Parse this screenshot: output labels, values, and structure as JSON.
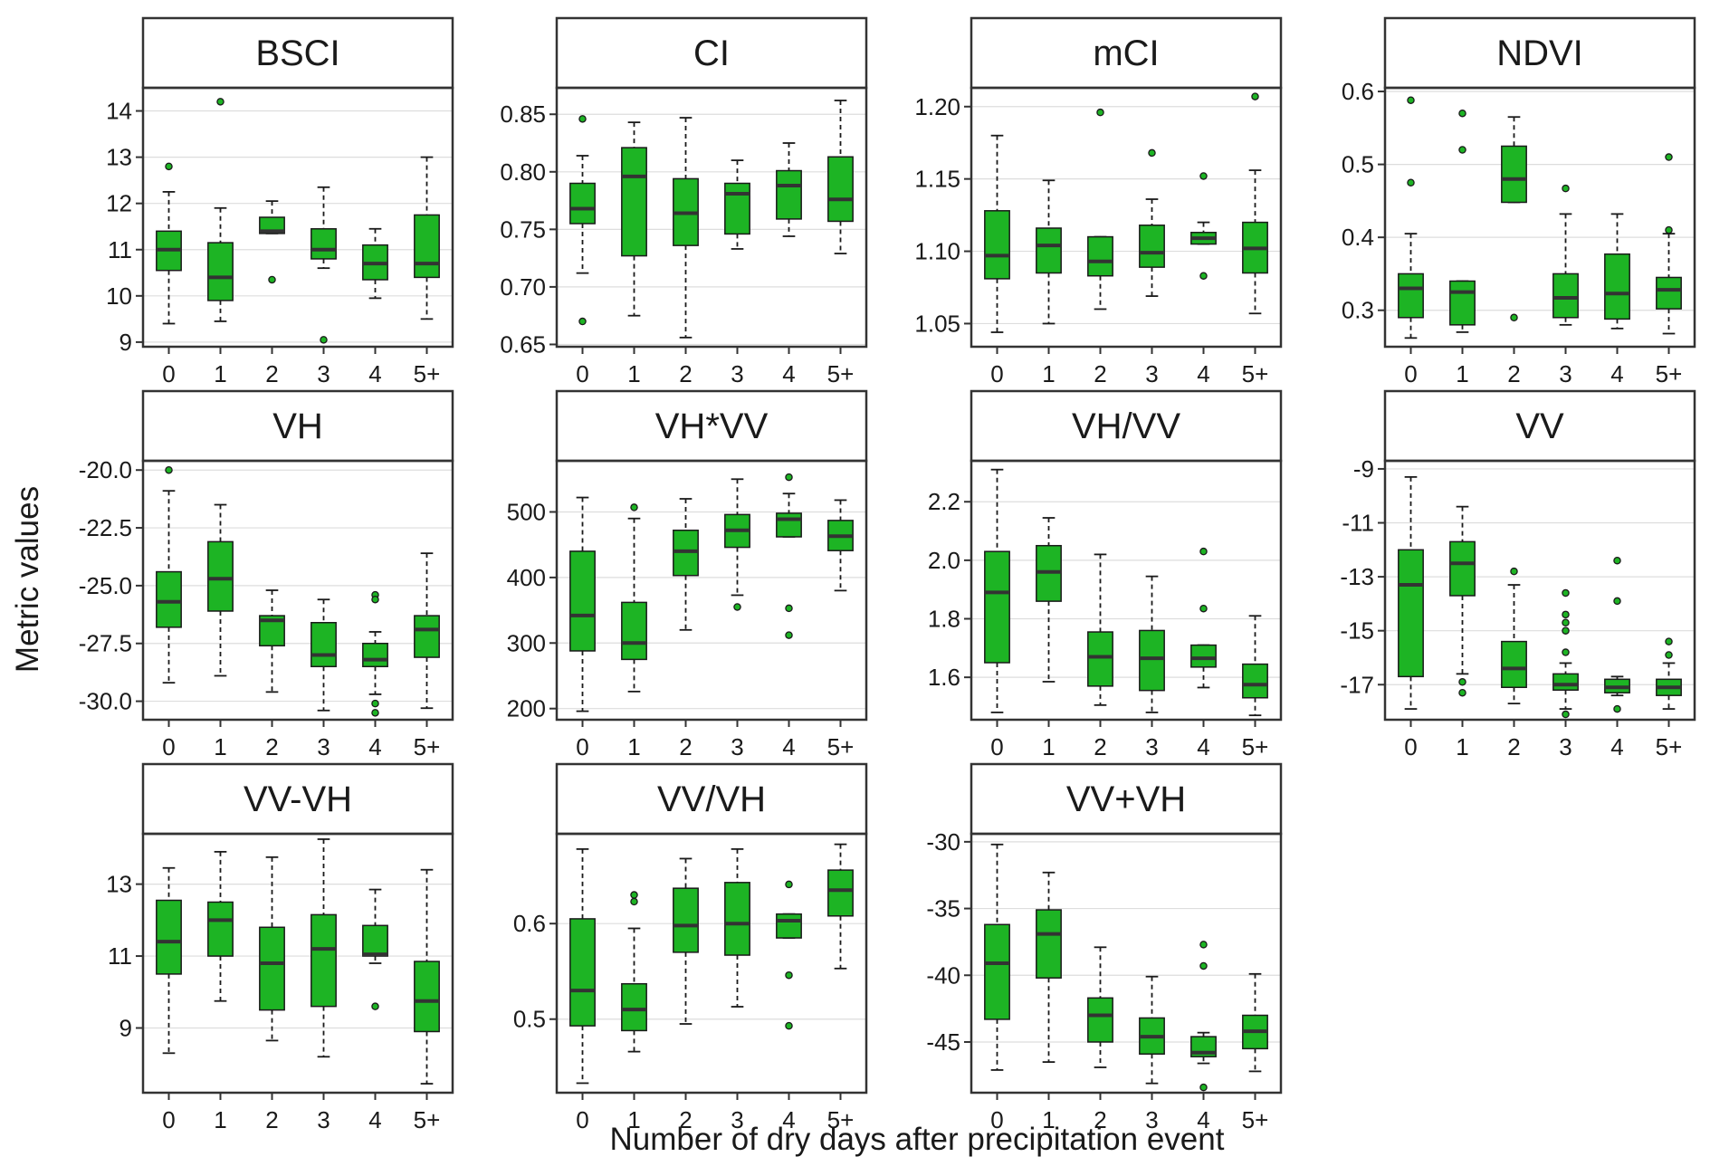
{
  "figure": {
    "ylabel": "Metric values",
    "xlabel": "Number of dry days after precipitation event",
    "colors": {
      "box_fill": "#1DB424",
      "box_stroke": "#1a1a1a",
      "median": "#333333",
      "outlier_fill": "#1DB424",
      "grid": "#dddddd",
      "frame": "#333333",
      "strip_bg": "#ffffff"
    }
  },
  "chart_data": [
    {
      "type": "box",
      "title": "BSCI",
      "categories": [
        "0",
        "1",
        "2",
        "3",
        "4",
        "5+"
      ],
      "ylim": [
        8.9,
        14.5
      ],
      "yticks": [
        9,
        10,
        11,
        12,
        13,
        14
      ],
      "ytick_labels": [
        "9",
        "10",
        "11",
        "12",
        "13",
        "14"
      ],
      "boxes": [
        {
          "lw": 9.4,
          "q1": 10.55,
          "median": 11.0,
          "q3": 11.4,
          "uw": 12.25,
          "outliers": [
            12.8
          ]
        },
        {
          "lw": 9.45,
          "q1": 9.9,
          "median": 10.4,
          "q3": 11.15,
          "uw": 11.9,
          "outliers": [
            14.2
          ]
        },
        {
          "lw": 11.35,
          "q1": 11.35,
          "median": 11.4,
          "q3": 11.7,
          "uw": 12.05,
          "outliers": [
            10.35
          ]
        },
        {
          "lw": 10.6,
          "q1": 10.8,
          "median": 11.0,
          "q3": 11.45,
          "uw": 12.35,
          "outliers": [
            9.05
          ]
        },
        {
          "lw": 9.95,
          "q1": 10.35,
          "median": 10.7,
          "q3": 11.1,
          "uw": 11.45,
          "outliers": []
        },
        {
          "lw": 9.5,
          "q1": 10.4,
          "median": 10.7,
          "q3": 11.75,
          "uw": 13.0,
          "outliers": []
        }
      ]
    },
    {
      "type": "box",
      "title": "CI",
      "categories": [
        "0",
        "1",
        "2",
        "3",
        "4",
        "5+"
      ],
      "ylim": [
        0.648,
        0.873
      ],
      "yticks": [
        0.65,
        0.7,
        0.75,
        0.8,
        0.85
      ],
      "ytick_labels": [
        "0.65",
        "0.70",
        "0.75",
        "0.80",
        "0.85"
      ],
      "boxes": [
        {
          "lw": 0.712,
          "q1": 0.755,
          "median": 0.768,
          "q3": 0.79,
          "uw": 0.814,
          "outliers": [
            0.846,
            0.67
          ]
        },
        {
          "lw": 0.675,
          "q1": 0.727,
          "median": 0.796,
          "q3": 0.821,
          "uw": 0.843,
          "outliers": []
        },
        {
          "lw": 0.656,
          "q1": 0.736,
          "median": 0.764,
          "q3": 0.794,
          "uw": 0.847,
          "outliers": []
        },
        {
          "lw": 0.733,
          "q1": 0.746,
          "median": 0.781,
          "q3": 0.79,
          "uw": 0.81,
          "outliers": []
        },
        {
          "lw": 0.744,
          "q1": 0.759,
          "median": 0.788,
          "q3": 0.801,
          "uw": 0.825,
          "outliers": []
        },
        {
          "lw": 0.729,
          "q1": 0.757,
          "median": 0.776,
          "q3": 0.813,
          "uw": 0.862,
          "outliers": []
        }
      ]
    },
    {
      "type": "box",
      "title": "mCI",
      "categories": [
        "0",
        "1",
        "2",
        "3",
        "4",
        "5+"
      ],
      "ylim": [
        1.034,
        1.213
      ],
      "yticks": [
        1.05,
        1.1,
        1.15,
        1.2
      ],
      "ytick_labels": [
        "1.05",
        "1.10",
        "1.15",
        "1.20"
      ],
      "boxes": [
        {
          "lw": 1.044,
          "q1": 1.081,
          "median": 1.097,
          "q3": 1.128,
          "uw": 1.18,
          "outliers": []
        },
        {
          "lw": 1.05,
          "q1": 1.085,
          "median": 1.104,
          "q3": 1.116,
          "uw": 1.149,
          "outliers": []
        },
        {
          "lw": 1.06,
          "q1": 1.083,
          "median": 1.093,
          "q3": 1.11,
          "uw": 1.11,
          "outliers": [
            1.196
          ]
        },
        {
          "lw": 1.069,
          "q1": 1.089,
          "median": 1.099,
          "q3": 1.118,
          "uw": 1.136,
          "outliers": [
            1.168
          ]
        },
        {
          "lw": 1.105,
          "q1": 1.105,
          "median": 1.109,
          "q3": 1.113,
          "uw": 1.12,
          "outliers": [
            1.152,
            1.083
          ]
        },
        {
          "lw": 1.057,
          "q1": 1.085,
          "median": 1.102,
          "q3": 1.12,
          "uw": 1.156,
          "outliers": [
            1.207
          ]
        }
      ]
    },
    {
      "type": "box",
      "title": "NDVI",
      "categories": [
        "0",
        "1",
        "2",
        "3",
        "4",
        "5+"
      ],
      "ylim": [
        0.25,
        0.605
      ],
      "yticks": [
        0.3,
        0.4,
        0.5,
        0.6
      ],
      "ytick_labels": [
        "0.3",
        "0.4",
        "0.5",
        "0.6"
      ],
      "boxes": [
        {
          "lw": 0.262,
          "q1": 0.29,
          "median": 0.33,
          "q3": 0.35,
          "uw": 0.405,
          "outliers": [
            0.588,
            0.475
          ]
        },
        {
          "lw": 0.27,
          "q1": 0.28,
          "median": 0.325,
          "q3": 0.34,
          "uw": 0.34,
          "outliers": [
            0.57,
            0.52
          ]
        },
        {
          "lw": 0.448,
          "q1": 0.448,
          "median": 0.48,
          "q3": 0.525,
          "uw": 0.565,
          "outliers": [
            0.29
          ]
        },
        {
          "lw": 0.28,
          "q1": 0.29,
          "median": 0.317,
          "q3": 0.35,
          "uw": 0.432,
          "outliers": [
            0.467
          ]
        },
        {
          "lw": 0.275,
          "q1": 0.288,
          "median": 0.323,
          "q3": 0.377,
          "uw": 0.432,
          "outliers": []
        },
        {
          "lw": 0.268,
          "q1": 0.302,
          "median": 0.328,
          "q3": 0.345,
          "uw": 0.405,
          "outliers": [
            0.51,
            0.41
          ]
        }
      ]
    },
    {
      "type": "box",
      "title": "VH",
      "categories": [
        "0",
        "1",
        "2",
        "3",
        "4",
        "5+"
      ],
      "ylim": [
        -30.8,
        -19.6
      ],
      "yticks": [
        -30.0,
        -27.5,
        -25.0,
        -22.5,
        -20.0
      ],
      "ytick_labels": [
        "-30.0",
        "-27.5",
        "-25.0",
        "-22.5",
        "-20.0"
      ],
      "boxes": [
        {
          "lw": -29.2,
          "q1": -26.8,
          "median": -25.7,
          "q3": -24.4,
          "uw": -20.9,
          "outliers": [
            -20.0
          ]
        },
        {
          "lw": -28.9,
          "q1": -26.1,
          "median": -24.7,
          "q3": -23.1,
          "uw": -21.5,
          "outliers": []
        },
        {
          "lw": -29.6,
          "q1": -27.6,
          "median": -26.5,
          "q3": -26.3,
          "uw": -25.2,
          "outliers": []
        },
        {
          "lw": -30.4,
          "q1": -28.5,
          "median": -28.0,
          "q3": -26.6,
          "uw": -25.6,
          "outliers": []
        },
        {
          "lw": -29.7,
          "q1": -28.5,
          "median": -28.2,
          "q3": -27.5,
          "uw": -27.0,
          "outliers": [
            -25.4,
            -25.6,
            -30.1,
            -30.5
          ]
        },
        {
          "lw": -30.3,
          "q1": -28.1,
          "median": -26.9,
          "q3": -26.3,
          "uw": -23.6,
          "outliers": []
        }
      ]
    },
    {
      "type": "box",
      "title": "VH*VV",
      "categories": [
        "0",
        "1",
        "2",
        "3",
        "4",
        "5+"
      ],
      "ylim": [
        183,
        578
      ],
      "yticks": [
        200,
        300,
        400,
        500
      ],
      "ytick_labels": [
        "200",
        "300",
        "400",
        "500"
      ],
      "boxes": [
        {
          "lw": 196,
          "q1": 288,
          "median": 342,
          "q3": 440,
          "uw": 522,
          "outliers": []
        },
        {
          "lw": 226,
          "q1": 275,
          "median": 300,
          "q3": 362,
          "uw": 490,
          "outliers": [
            507
          ]
        },
        {
          "lw": 320,
          "q1": 403,
          "median": 440,
          "q3": 472,
          "uw": 520,
          "outliers": []
        },
        {
          "lw": 373,
          "q1": 446,
          "median": 472,
          "q3": 496,
          "uw": 550,
          "outliers": [
            355
          ]
        },
        {
          "lw": 462,
          "q1": 462,
          "median": 489,
          "q3": 498,
          "uw": 528,
          "outliers": [
            553,
            353,
            312
          ]
        },
        {
          "lw": 380,
          "q1": 441,
          "median": 463,
          "q3": 487,
          "uw": 518,
          "outliers": []
        }
      ]
    },
    {
      "type": "box",
      "title": "VH/VV",
      "categories": [
        "0",
        "1",
        "2",
        "3",
        "4",
        "5+"
      ],
      "ylim": [
        1.455,
        2.34
      ],
      "yticks": [
        1.6,
        1.8,
        2.0,
        2.2
      ],
      "ytick_labels": [
        "1.6",
        "1.8",
        "2.0",
        "2.2"
      ],
      "boxes": [
        {
          "lw": 1.48,
          "q1": 1.65,
          "median": 1.89,
          "q3": 2.03,
          "uw": 2.31,
          "outliers": []
        },
        {
          "lw": 1.585,
          "q1": 1.86,
          "median": 1.96,
          "q3": 2.05,
          "uw": 2.145,
          "outliers": []
        },
        {
          "lw": 1.505,
          "q1": 1.57,
          "median": 1.67,
          "q3": 1.755,
          "uw": 2.02,
          "outliers": []
        },
        {
          "lw": 1.48,
          "q1": 1.555,
          "median": 1.665,
          "q3": 1.76,
          "uw": 1.945,
          "outliers": []
        },
        {
          "lw": 1.565,
          "q1": 1.635,
          "median": 1.665,
          "q3": 1.71,
          "uw": 1.71,
          "outliers": [
            2.03,
            1.835
          ]
        },
        {
          "lw": 1.47,
          "q1": 1.53,
          "median": 1.575,
          "q3": 1.645,
          "uw": 1.81,
          "outliers": []
        }
      ]
    },
    {
      "type": "box",
      "title": "VV",
      "categories": [
        "0",
        "1",
        "2",
        "3",
        "4",
        "5+"
      ],
      "ylim": [
        -18.3,
        -8.7
      ],
      "yticks": [
        -17,
        -15,
        -13,
        -11,
        -9
      ],
      "ytick_labels": [
        "-17",
        "-15",
        "-13",
        "-11",
        "-9"
      ],
      "boxes": [
        {
          "lw": -17.9,
          "q1": -16.7,
          "median": -13.3,
          "q3": -12.0,
          "uw": -9.3,
          "outliers": []
        },
        {
          "lw": -16.6,
          "q1": -13.7,
          "median": -12.5,
          "q3": -11.7,
          "uw": -10.4,
          "outliers": [
            -16.9,
            -17.3
          ]
        },
        {
          "lw": -17.7,
          "q1": -17.1,
          "median": -16.4,
          "q3": -15.4,
          "uw": -13.3,
          "outliers": [
            -12.8
          ]
        },
        {
          "lw": -17.9,
          "q1": -17.2,
          "median": -17.0,
          "q3": -16.6,
          "uw": -16.2,
          "outliers": [
            -13.6,
            -14.4,
            -14.7,
            -15.0,
            -15.8,
            -18.1
          ]
        },
        {
          "lw": -17.4,
          "q1": -17.3,
          "median": -17.1,
          "q3": -16.8,
          "uw": -16.7,
          "outliers": [
            -12.4,
            -13.9,
            -17.9
          ]
        },
        {
          "lw": -17.9,
          "q1": -17.4,
          "median": -17.1,
          "q3": -16.8,
          "uw": -16.2,
          "outliers": [
            -15.4,
            -15.9
          ]
        }
      ]
    },
    {
      "type": "box",
      "title": "VV-VH",
      "categories": [
        "0",
        "1",
        "2",
        "3",
        "4",
        "5+"
      ],
      "ylim": [
        7.2,
        14.4
      ],
      "yticks": [
        9,
        11,
        13
      ],
      "ytick_labels": [
        "9",
        "11",
        "13"
      ],
      "boxes": [
        {
          "lw": 8.3,
          "q1": 10.5,
          "median": 11.4,
          "q3": 12.55,
          "uw": 13.45,
          "outliers": []
        },
        {
          "lw": 9.75,
          "q1": 11.0,
          "median": 12.0,
          "q3": 12.5,
          "uw": 13.9,
          "outliers": []
        },
        {
          "lw": 8.65,
          "q1": 9.5,
          "median": 10.8,
          "q3": 11.8,
          "uw": 13.75,
          "outliers": []
        },
        {
          "lw": 8.2,
          "q1": 9.6,
          "median": 11.2,
          "q3": 12.15,
          "uw": 14.25,
          "outliers": []
        },
        {
          "lw": 10.8,
          "q1": 11.0,
          "median": 11.05,
          "q3": 11.85,
          "uw": 12.85,
          "outliers": [
            9.6
          ]
        },
        {
          "lw": 7.45,
          "q1": 8.9,
          "median": 9.75,
          "q3": 10.85,
          "uw": 13.4,
          "outliers": []
        }
      ]
    },
    {
      "type": "box",
      "title": "VV/VH",
      "categories": [
        "0",
        "1",
        "2",
        "3",
        "4",
        "5+"
      ],
      "ylim": [
        0.423,
        0.694
      ],
      "yticks": [
        0.5,
        0.6
      ],
      "ytick_labels": [
        "0.5",
        "0.6"
      ],
      "boxes": [
        {
          "lw": 0.433,
          "q1": 0.493,
          "median": 0.53,
          "q3": 0.605,
          "uw": 0.678,
          "outliers": []
        },
        {
          "lw": 0.466,
          "q1": 0.488,
          "median": 0.51,
          "q3": 0.537,
          "uw": 0.595,
          "outliers": [
            0.63,
            0.623
          ]
        },
        {
          "lw": 0.495,
          "q1": 0.57,
          "median": 0.598,
          "q3": 0.637,
          "uw": 0.668,
          "outliers": []
        },
        {
          "lw": 0.513,
          "q1": 0.567,
          "median": 0.6,
          "q3": 0.643,
          "uw": 0.678,
          "outliers": []
        },
        {
          "lw": 0.585,
          "q1": 0.585,
          "median": 0.603,
          "q3": 0.61,
          "uw": 0.61,
          "outliers": [
            0.641,
            0.546,
            0.493
          ]
        },
        {
          "lw": 0.553,
          "q1": 0.608,
          "median": 0.635,
          "q3": 0.656,
          "uw": 0.683,
          "outliers": []
        }
      ]
    },
    {
      "type": "box",
      "title": "VV+VH",
      "categories": [
        "0",
        "1",
        "2",
        "3",
        "4",
        "5+"
      ],
      "ylim": [
        -48.8,
        -29.4
      ],
      "yticks": [
        -45,
        -40,
        -35,
        -30
      ],
      "ytick_labels": [
        "-45",
        "-40",
        "-35",
        "-30"
      ],
      "boxes": [
        {
          "lw": -47.1,
          "q1": -43.3,
          "median": -39.1,
          "q3": -36.2,
          "uw": -30.2,
          "outliers": []
        },
        {
          "lw": -46.5,
          "q1": -40.2,
          "median": -36.9,
          "q3": -35.1,
          "uw": -32.3,
          "outliers": []
        },
        {
          "lw": -46.9,
          "q1": -45.0,
          "median": -43.0,
          "q3": -41.7,
          "uw": -37.9,
          "outliers": []
        },
        {
          "lw": -48.1,
          "q1": -45.9,
          "median": -44.6,
          "q3": -43.2,
          "uw": -40.1,
          "outliers": []
        },
        {
          "lw": -46.6,
          "q1": -46.1,
          "median": -45.8,
          "q3": -44.6,
          "uw": -44.3,
          "outliers": [
            -37.7,
            -39.3,
            -48.4
          ]
        },
        {
          "lw": -47.2,
          "q1": -45.5,
          "median": -44.2,
          "q3": -43.0,
          "uw": -39.9,
          "outliers": []
        }
      ]
    }
  ]
}
